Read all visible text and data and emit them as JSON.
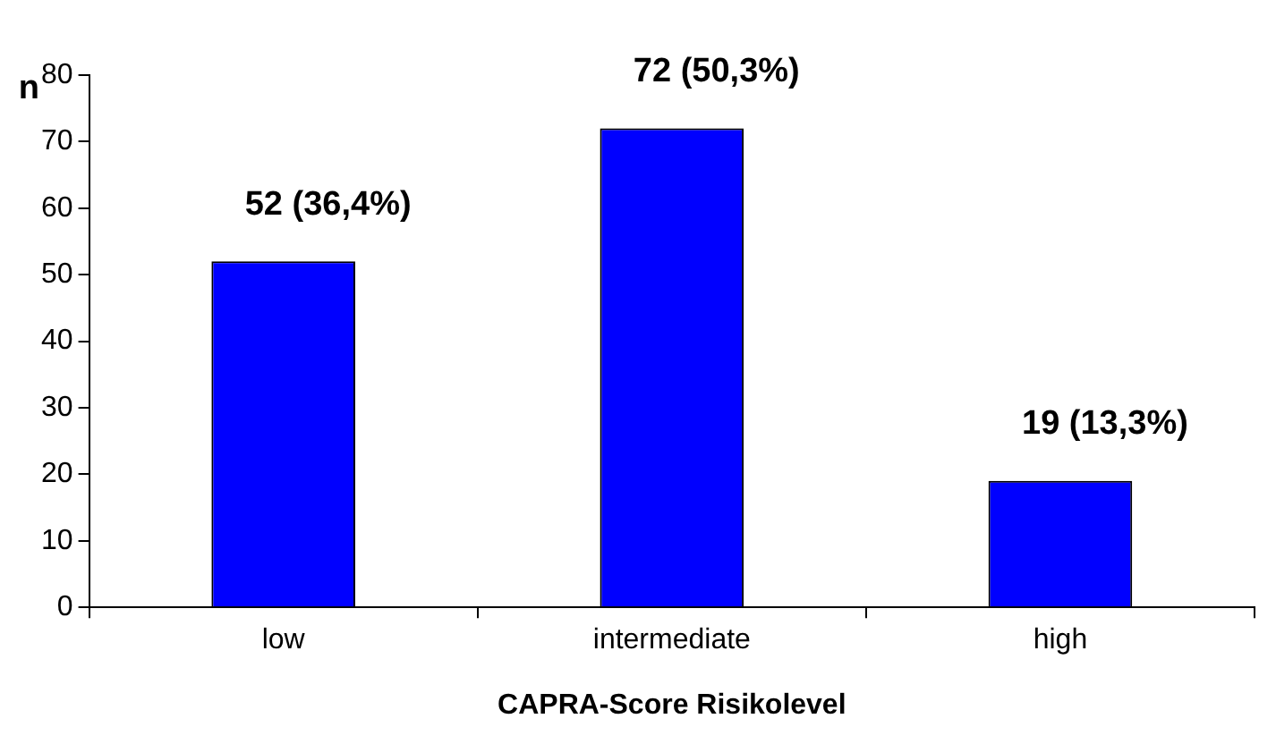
{
  "chart_data": {
    "type": "bar",
    "xlabel": "CAPRA-Score Risikolevel",
    "ylabel": "n",
    "categories": [
      "low",
      "intermediate",
      "high"
    ],
    "values": [
      52,
      72,
      19
    ],
    "color": "#0000ff",
    "value_labels": [
      "52 (36,4%)",
      "72 (50,3%)",
      "19 (13,3%)"
    ],
    "ylim": [
      0,
      80
    ],
    "yticks": [
      0,
      10,
      20,
      30,
      40,
      50,
      60,
      70,
      80
    ],
    "grid": false,
    "legend": false
  }
}
